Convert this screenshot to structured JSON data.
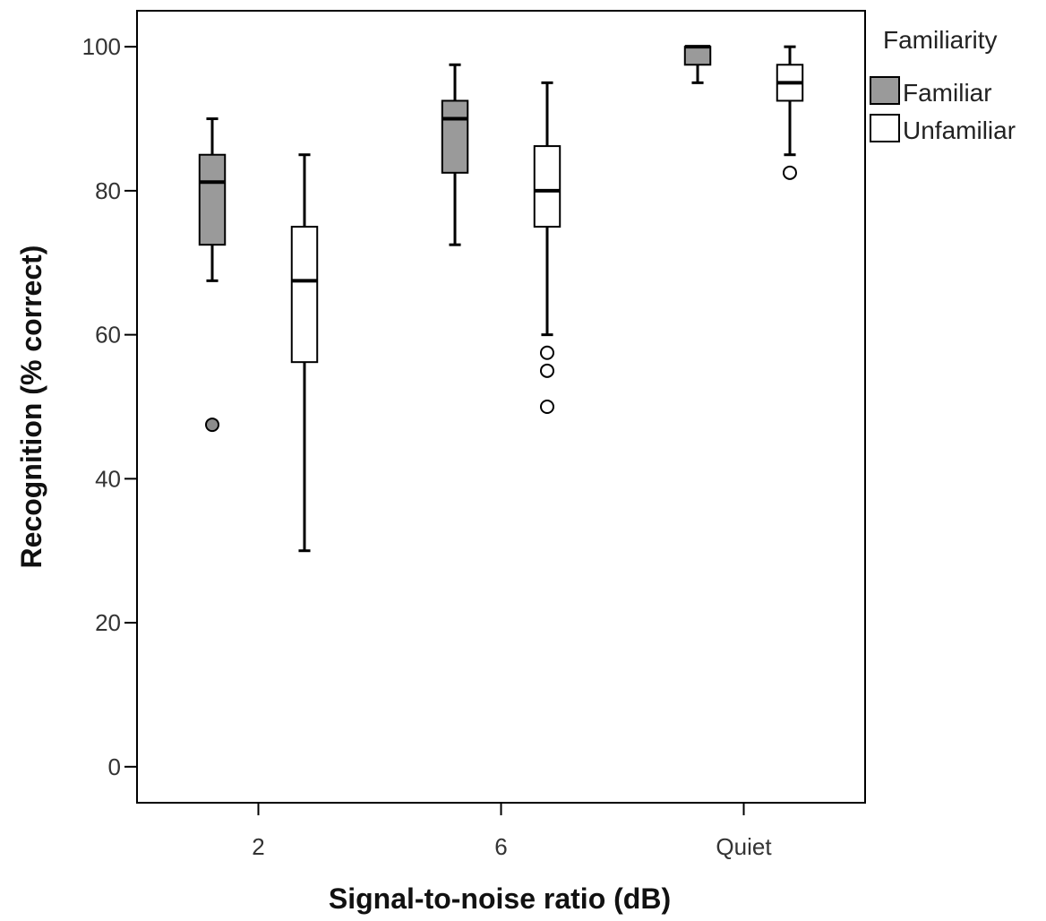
{
  "chart_data": {
    "type": "boxplot",
    "xlabel": "Signal-to-noise ratio (dB)",
    "ylabel": "Recognition (% correct)",
    "ylim": [
      -5,
      105
    ],
    "yticks": [
      0,
      20,
      40,
      60,
      80,
      100
    ],
    "categories": [
      "2",
      "6",
      "Quiet"
    ],
    "legend": {
      "title": "Familiarity",
      "placement": "top-right outside"
    },
    "grid": false,
    "series": [
      {
        "name": "Familiar",
        "color": "#9a9a9a",
        "boxes": [
          {
            "category": "2",
            "whisker_low": 67.5,
            "q1": 72.5,
            "median": 81.2,
            "q3": 85,
            "whisker_high": 90,
            "outliers": [
              47.5
            ]
          },
          {
            "category": "6",
            "whisker_low": 72.5,
            "q1": 82.5,
            "median": 90,
            "q3": 92.5,
            "whisker_high": 97.5,
            "outliers": []
          },
          {
            "category": "Quiet",
            "whisker_low": 95,
            "q1": 97.5,
            "median": 100,
            "q3": 100,
            "whisker_high": 100,
            "outliers": []
          }
        ]
      },
      {
        "name": "Unfamiliar",
        "color": "#ffffff",
        "boxes": [
          {
            "category": "2",
            "whisker_low": 30,
            "q1": 56.2,
            "median": 67.5,
            "q3": 75,
            "whisker_high": 85,
            "outliers": []
          },
          {
            "category": "6",
            "whisker_low": 60,
            "q1": 75,
            "median": 80,
            "q3": 86.2,
            "whisker_high": 95,
            "outliers": [
              50,
              55,
              57.5
            ]
          },
          {
            "category": "Quiet",
            "whisker_low": 85,
            "q1": 92.5,
            "median": 95,
            "q3": 97.5,
            "whisker_high": 100,
            "outliers": [
              82.5
            ]
          }
        ]
      }
    ]
  }
}
